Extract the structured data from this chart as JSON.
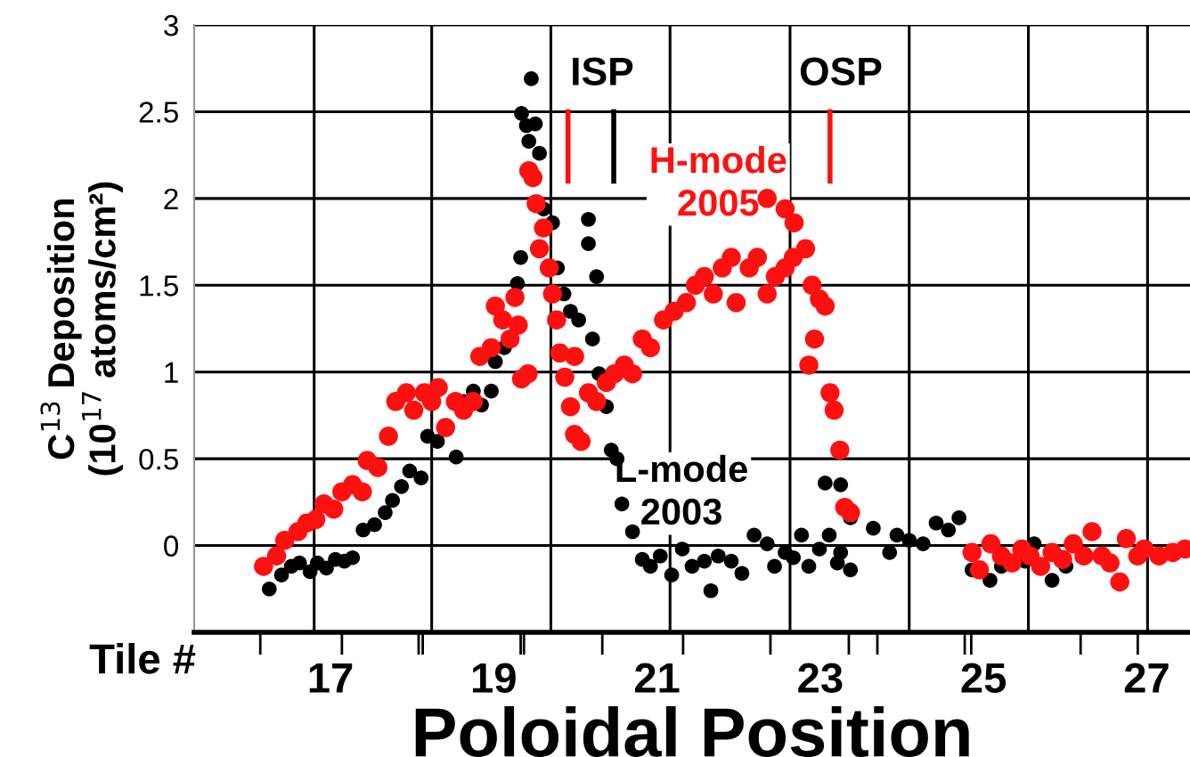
{
  "chart_data": {
    "type": "scatter",
    "xlabel": "Poloidal Position",
    "ylabel": "C$^{13}$ Deposition\n(10$^{17}$ atoms/cm²)",
    "annotations": [
      "Tile #",
      "ISP",
      "OSP"
    ],
    "xlim": [
      15.33,
      27.53
    ],
    "ylim": [
      -0.5,
      3
    ],
    "yticks": [
      0,
      0.5,
      1,
      1.5,
      2,
      2.5,
      3
    ],
    "xticks": [
      {
        "value": 16.14,
        "label": null
      },
      17,
      {
        "value": 17.14,
        "label": null
      },
      {
        "value": 18.08,
        "label": null
      },
      {
        "value": 18.13,
        "label": null
      },
      19,
      {
        "value": 19.33,
        "label": null
      },
      {
        "value": 19.37,
        "label": null
      },
      {
        "value": 20.33,
        "label": null
      },
      21,
      {
        "value": 21.32,
        "label": null
      },
      {
        "value": 22.39,
        "label": null
      },
      23,
      {
        "value": 23.35,
        "label": null
      },
      {
        "value": 23.7,
        "label": null
      },
      {
        "value": 24.77,
        "label": null
      },
      {
        "value": 24.85,
        "label": null
      },
      25,
      {
        "value": 26.19,
        "label": null
      },
      {
        "value": 26.89,
        "label": null
      },
      27
    ],
    "grid": "y",
    "marker": "circle",
    "ref_lines": [
      {
        "axis": "x",
        "value": 16.8,
        "color": "#000000"
      },
      {
        "axis": "x",
        "value": 18.24,
        "color": "#000000"
      },
      {
        "axis": "x",
        "value": 19.7,
        "color": "#000000"
      },
      {
        "axis": "x",
        "value": 21.16,
        "color": "#000000"
      },
      {
        "axis": "x",
        "value": 22.63,
        "color": "#000000"
      },
      {
        "axis": "x",
        "value": 24.09,
        "color": "#000000"
      },
      {
        "axis": "x",
        "value": 25.55,
        "color": "#000000"
      },
      {
        "axis": "x",
        "value": 27.01,
        "color": "#000000"
      }
    ],
    "series": [
      {
        "name": "L-mode\n2003",
        "color": "#000000",
        "x": [
          16.25,
          16.4,
          16.52,
          16.62,
          16.75,
          16.84,
          16.95,
          17.06,
          17.17,
          17.27,
          17.4,
          17.54,
          17.67,
          17.76,
          17.87,
          17.97,
          18.11,
          18.19,
          18.31,
          18.54,
          18.63,
          18.75,
          18.85,
          18.97,
          19.02,
          19.13,
          19.29,
          19.33,
          19.46,
          19.34,
          19.4,
          19.51,
          19.43,
          19.56,
          19.61,
          19.72,
          19.78,
          19.86,
          19.94,
          20.04,
          20.16,
          20.16,
          20.26,
          20.21,
          20.29,
          20.38,
          20.44,
          20.51,
          20.57,
          20.7,
          20.82,
          20.92,
          21.04,
          21.18,
          21.31,
          21.43,
          21.58,
          21.66,
          21.75,
          21.91,
          22.04,
          22.19,
          22.35,
          22.44,
          22.57,
          22.67,
          22.77,
          22.86,
          22.99,
          23.11,
          23.21,
          23.25,
          23.06,
          23.25,
          23.37,
          23.37,
          23.65,
          23.85,
          23.94,
          24.09,
          24.26,
          24.42,
          24.57,
          24.7,
          24.86,
          25.08,
          25.22,
          25.51,
          25.62,
          25.84,
          26.01
        ],
        "values": [
          -0.25,
          -0.17,
          -0.12,
          -0.1,
          -0.15,
          -0.1,
          -0.13,
          -0.08,
          -0.09,
          -0.07,
          0.09,
          0.12,
          0.19,
          0.26,
          0.34,
          0.43,
          0.39,
          0.63,
          0.6,
          0.51,
          0.83,
          0.89,
          0.81,
          0.89,
          1.06,
          1.14,
          1.51,
          1.66,
          2.69,
          2.49,
          2.42,
          2.43,
          2.33,
          2.26,
          1.94,
          1.86,
          1.6,
          1.45,
          1.35,
          1.3,
          1.88,
          1.74,
          1.55,
          1.19,
          0.99,
          0.8,
          0.55,
          0.5,
          0.24,
          0.08,
          -0.08,
          -0.12,
          -0.06,
          -0.17,
          -0.02,
          -0.12,
          -0.09,
          -0.26,
          -0.06,
          -0.09,
          -0.16,
          0.06,
          0.01,
          -0.12,
          -0.04,
          -0.07,
          0.06,
          -0.12,
          -0.02,
          0.06,
          -0.1,
          -0.04,
          0.36,
          0.35,
          0.16,
          -0.14,
          0.1,
          -0.04,
          0.06,
          0.03,
          0.01,
          0.13,
          0.09,
          0.16,
          -0.14,
          -0.2,
          -0.12,
          -0.09,
          0.01,
          -0.2,
          -0.12
        ]
      },
      {
        "name": "H-mode\n2005",
        "color": "#ff1010",
        "x": [
          16.18,
          16.34,
          16.44,
          16.6,
          16.71,
          16.82,
          16.92,
          17.04,
          17.14,
          17.27,
          17.39,
          17.45,
          17.58,
          17.71,
          17.8,
          17.93,
          18.02,
          18.15,
          18.24,
          18.32,
          18.41,
          18.53,
          18.63,
          18.75,
          18.83,
          18.97,
          19.02,
          19.11,
          19.2,
          19.26,
          19.3,
          19.34,
          19.42,
          19.43,
          19.48,
          19.52,
          19.56,
          19.61,
          19.68,
          19.72,
          19.77,
          19.81,
          19.87,
          19.94,
          19.99,
          20.07,
          19.99,
          20.16,
          20.26,
          20.38,
          20.48,
          20.6,
          20.7,
          20.82,
          20.92,
          21.08,
          21.21,
          21.36,
          21.47,
          21.58,
          21.69,
          21.8,
          21.91,
          21.97,
          22.13,
          22.23,
          22.35,
          22.45,
          22.57,
          22.67,
          22.35,
          22.57,
          22.68,
          22.82,
          22.9,
          22.99,
          23.06,
          22.93,
          22.86,
          23.12,
          23.17,
          23.24,
          23.3,
          23.37,
          24.86,
          24.95,
          25.09,
          25.22,
          25.35,
          25.47,
          25.57,
          25.7,
          25.84,
          25.97,
          26.1,
          26.23,
          26.33,
          26.45,
          26.55,
          26.67,
          26.75,
          26.89,
          26.97,
          27.15,
          27.32,
          27.47
        ],
        "values": [
          -0.12,
          -0.06,
          0.03,
          0.08,
          0.13,
          0.15,
          0.24,
          0.21,
          0.31,
          0.35,
          0.31,
          0.49,
          0.45,
          0.63,
          0.83,
          0.88,
          0.78,
          0.88,
          0.83,
          0.91,
          0.68,
          0.83,
          0.78,
          0.83,
          1.09,
          1.14,
          1.38,
          1.3,
          1.19,
          1.43,
          1.27,
          0.96,
          0.99,
          2.16,
          2.12,
          1.97,
          1.71,
          1.83,
          1.6,
          1.45,
          1.3,
          1.11,
          0.97,
          0.8,
          0.64,
          0.6,
          1.09,
          0.88,
          0.83,
          0.94,
          0.99,
          1.04,
          0.99,
          1.19,
          1.14,
          1.3,
          1.35,
          1.4,
          1.5,
          1.55,
          1.45,
          1.6,
          1.66,
          1.4,
          1.6,
          1.66,
          1.45,
          1.55,
          1.6,
          1.66,
          2.0,
          1.94,
          1.86,
          1.71,
          1.5,
          1.42,
          1.38,
          1.19,
          1.04,
          0.88,
          0.78,
          0.55,
          0.22,
          0.19,
          -0.04,
          -0.14,
          0.01,
          -0.06,
          -0.1,
          -0.02,
          -0.06,
          -0.12,
          -0.04,
          -0.08,
          0.01,
          -0.06,
          0.08,
          -0.06,
          -0.1,
          -0.21,
          0.04,
          -0.06,
          -0.02,
          -0.06,
          -0.04,
          -0.02
        ]
      },
      {
        "type": "line",
        "color": "#ff1010",
        "marker": "none",
        "x": [
          19.91,
          19.91
        ],
        "values": [
          2.5,
          2.1
        ]
      },
      {
        "type": "line",
        "color": "#000000",
        "marker": "none",
        "x": [
          20.47,
          20.47
        ],
        "values": [
          2.5,
          2.1
        ]
      },
      {
        "type": "line",
        "color": "#ff1010",
        "marker": "none",
        "x": [
          23.12,
          23.12
        ],
        "values": [
          2.5,
          2.1
        ]
      }
    ]
  }
}
